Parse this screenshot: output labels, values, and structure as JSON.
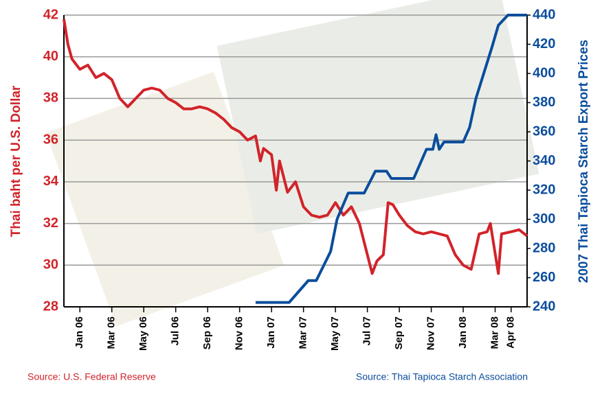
{
  "chart_data": {
    "type": "line",
    "y_label": "Thai baht per U.S. Dollar",
    "y2_label": "2007 Thai Tapioca Starch Export Prices",
    "xlim": [
      0,
      29
    ],
    "xticks": [
      {
        "value": 1,
        "label": "Jan 06"
      },
      {
        "value": 3,
        "label": "Mar 06"
      },
      {
        "value": 5,
        "label": "May 06"
      },
      {
        "value": 7,
        "label": "Jul 06"
      },
      {
        "value": 9,
        "label": "Sep 06"
      },
      {
        "value": 11,
        "label": "Nov 06"
      },
      {
        "value": 13,
        "label": "Jan 07"
      },
      {
        "value": 15,
        "label": "Mar 07"
      },
      {
        "value": 17,
        "label": "May 07"
      },
      {
        "value": 19,
        "label": "Jul 07"
      },
      {
        "value": 21,
        "label": "Sep 07"
      },
      {
        "value": 23,
        "label": "Nov 07"
      },
      {
        "value": 25,
        "label": "Jan 08"
      },
      {
        "value": 27,
        "label": "Mar 08"
      },
      {
        "value": 28,
        "label": "Apr 08"
      }
    ],
    "ylim": [
      28,
      42
    ],
    "yticks": [
      28,
      30,
      32,
      34,
      36,
      38,
      40,
      42
    ],
    "y2lim": [
      240,
      440
    ],
    "y2ticks": [
      240,
      260,
      280,
      300,
      320,
      340,
      360,
      380,
      400,
      420,
      440
    ],
    "grid": true,
    "series": [
      {
        "color": "#d2232a",
        "x": [
          0,
          0.25,
          0.5,
          1,
          1.5,
          2,
          2.5,
          3,
          3.5,
          4,
          4.5,
          5,
          5.5,
          6,
          6.5,
          7,
          7.5,
          8,
          8.5,
          9,
          9.5,
          10,
          10.5,
          11,
          11.5,
          12,
          12.3,
          12.5,
          13,
          13.3,
          13.5,
          14,
          14.5,
          15,
          15.5,
          16,
          16.5,
          17,
          17.5,
          18,
          18.5,
          19,
          19.3,
          19.6,
          20,
          20.3,
          20.6,
          21,
          21.5,
          22,
          22.5,
          23,
          23.5,
          24,
          24.5,
          25,
          25.5,
          26,
          26.5,
          26.7,
          27.2,
          27.4,
          28,
          28.5,
          29
        ],
        "values": [
          41.8,
          40.6,
          39.9,
          39.4,
          39.6,
          39.0,
          39.2,
          38.9,
          38.0,
          37.6,
          38.0,
          38.4,
          38.5,
          38.4,
          38.0,
          37.8,
          37.5,
          37.5,
          37.6,
          37.5,
          37.3,
          37.0,
          36.6,
          36.4,
          36.0,
          36.2,
          35.0,
          35.6,
          35.3,
          33.6,
          35.0,
          33.5,
          34.0,
          32.8,
          32.4,
          32.3,
          32.4,
          33.0,
          32.4,
          32.8,
          32.0,
          30.5,
          29.6,
          30.2,
          30.5,
          33.0,
          32.9,
          32.4,
          31.9,
          31.6,
          31.5,
          31.6,
          31.5,
          31.4,
          30.5,
          30.0,
          29.8,
          31.5,
          31.6,
          32.0,
          29.6,
          31.5,
          31.6,
          31.7,
          31.4
        ]
      },
      {
        "color": "#0a4d9c",
        "axis": "y2",
        "x": [
          12,
          14.1,
          14.9,
          15.3,
          15.8,
          16.7,
          17.1,
          17.8,
          18.3,
          18.8,
          19.5,
          20.2,
          20.5,
          21.9,
          22.1,
          22.7,
          23.1,
          23.3,
          23.5,
          23.8,
          25.0,
          25.4,
          25.8,
          26.8,
          27.2,
          27.8,
          29
        ],
        "values": [
          243,
          243,
          253,
          258,
          258,
          278,
          300,
          318,
          318,
          318,
          333,
          333,
          328,
          328,
          333,
          348,
          348,
          358,
          348,
          353,
          353,
          363,
          383,
          418,
          433,
          440,
          440
        ]
      }
    ],
    "sources": [
      "Source: U.S. Federal Reserve",
      "Source: Thai Tapioca Starch Association"
    ]
  }
}
